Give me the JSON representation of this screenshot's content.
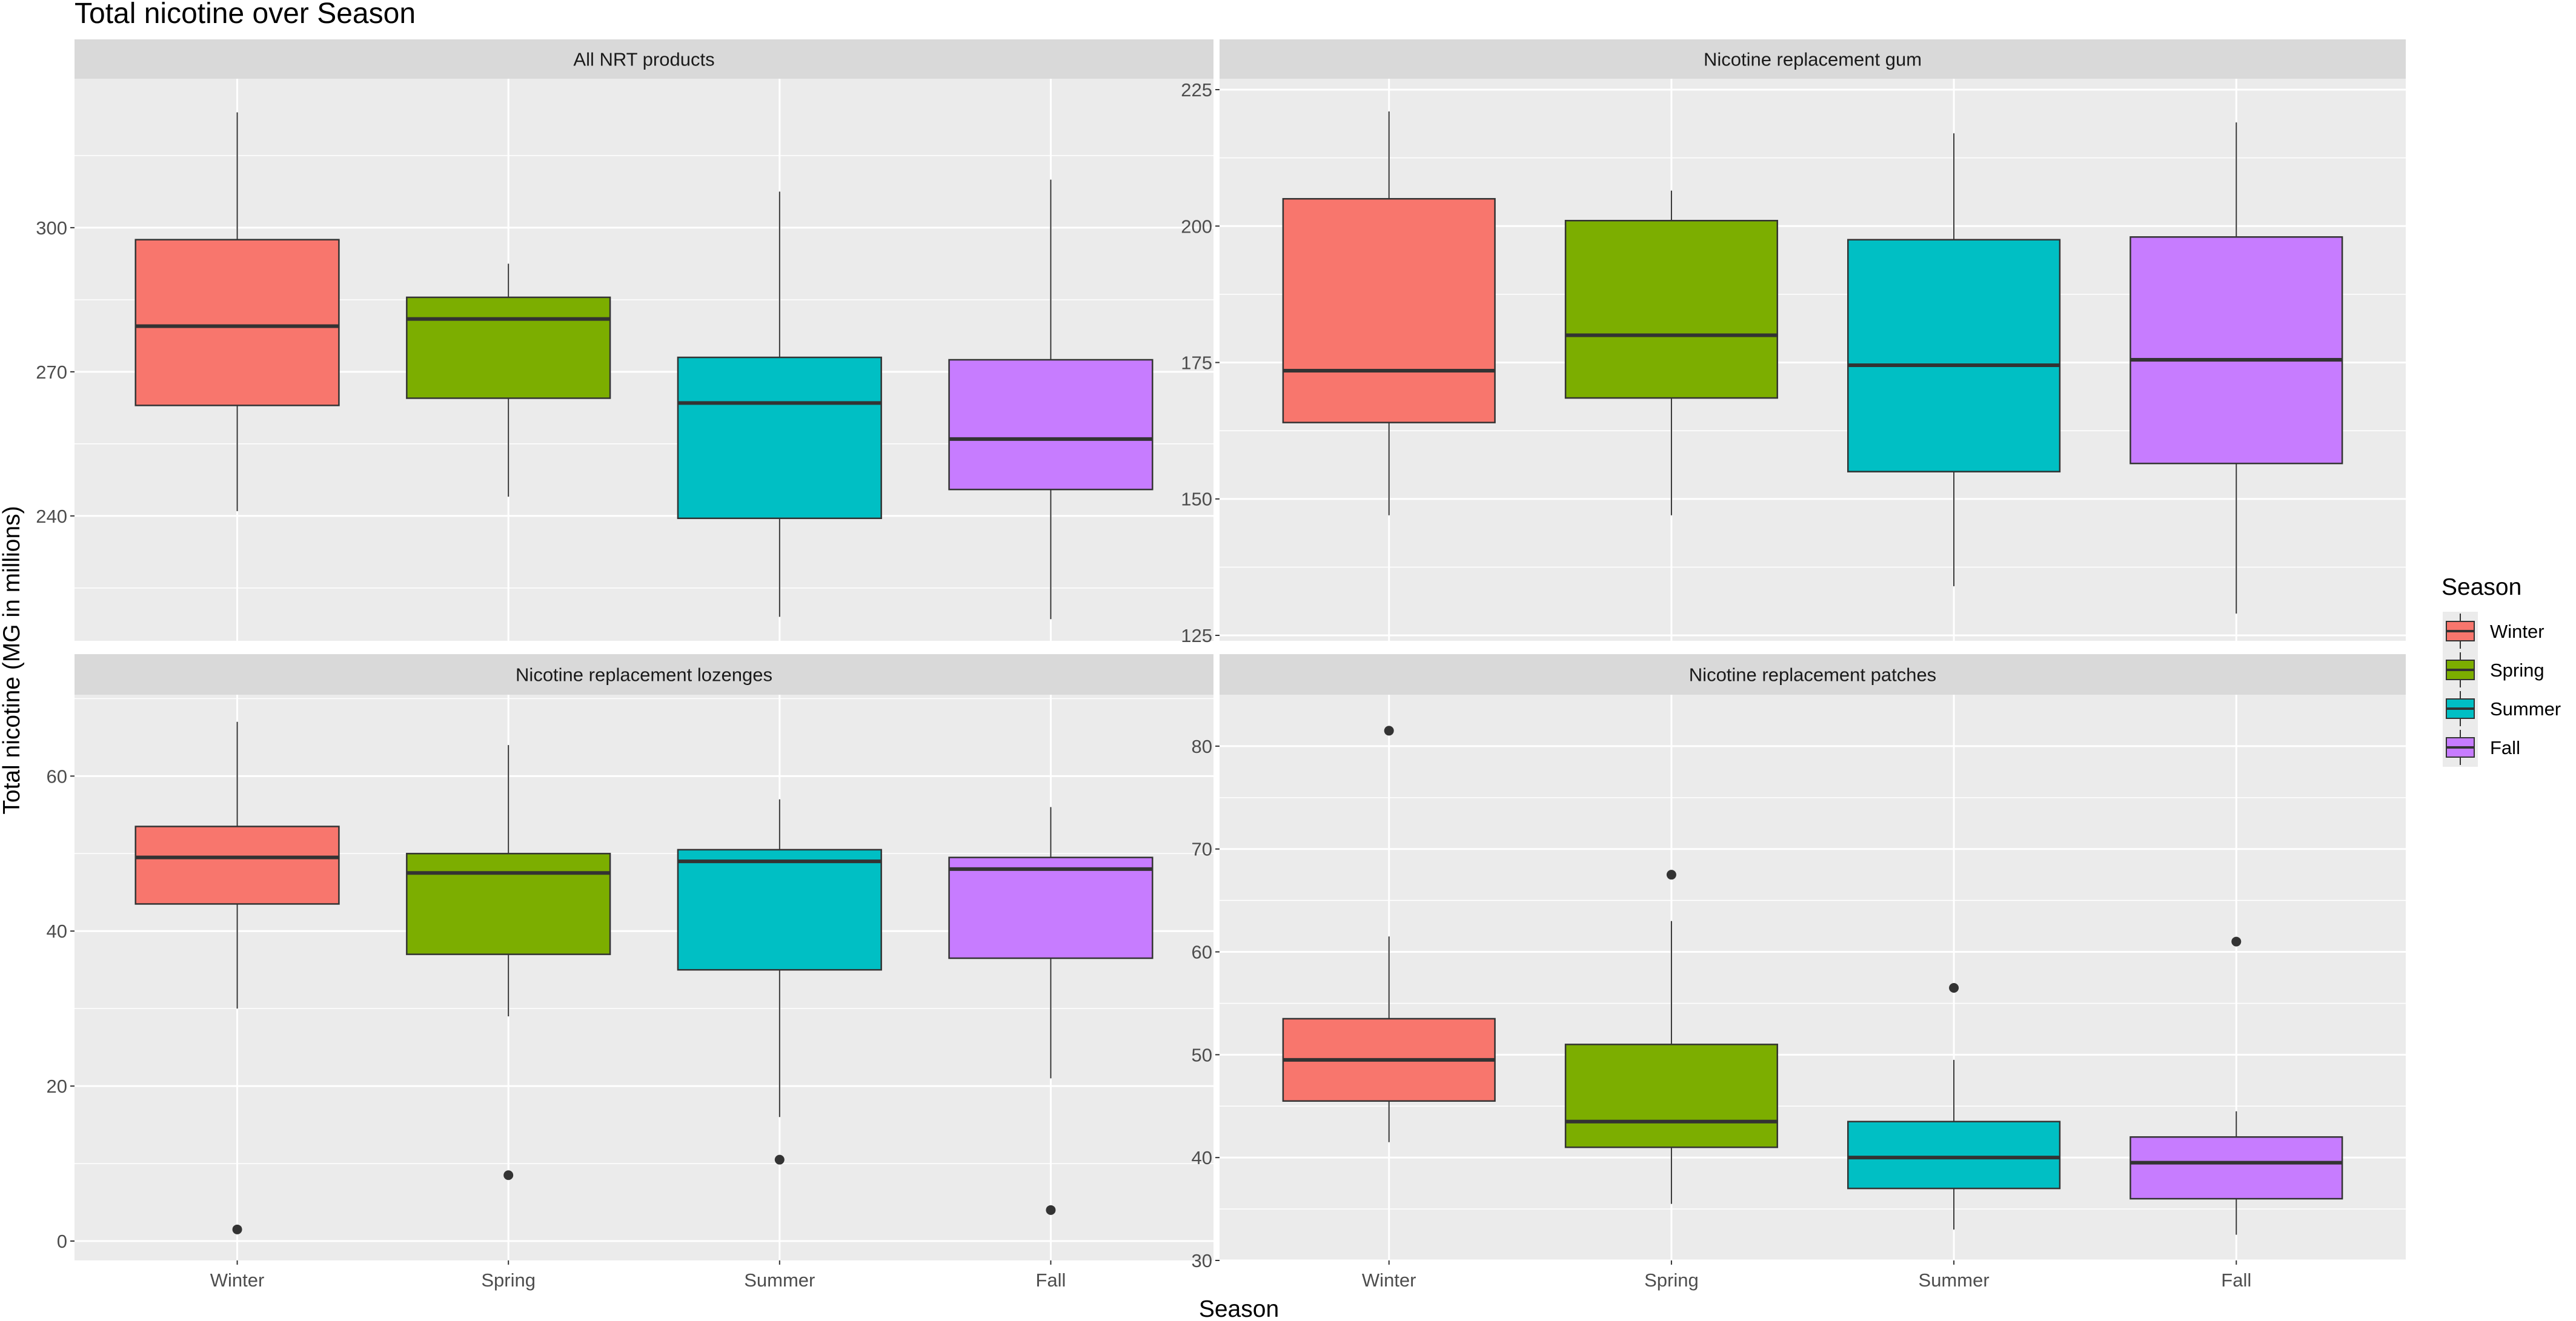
{
  "chart_data": {
    "type": "boxplot",
    "title": "Total nicotine over Season",
    "xlabel": "Season",
    "ylabel": "Total nicotine (MG in millions)",
    "categories": [
      "Winter",
      "Spring",
      "Summer",
      "Fall"
    ],
    "colors": [
      "#F8766D",
      "#7CAE00",
      "#00BFC4",
      "#C77CFF"
    ],
    "legend": {
      "title": "Season",
      "position": "right",
      "labels": [
        "Winter",
        "Spring",
        "Summer",
        "Fall"
      ]
    },
    "grid": true,
    "panels": [
      {
        "strip": "All NRT products",
        "ylim": [
          214,
          331
        ],
        "yticks": [
          240,
          270,
          300
        ],
        "boxes": [
          {
            "whisker_low": 241,
            "q1": 263,
            "median": 279.5,
            "q3": 297.5,
            "whisker_high": 324,
            "outliers": []
          },
          {
            "whisker_low": 244,
            "q1": 264.5,
            "median": 281,
            "q3": 285.5,
            "whisker_high": 292.5,
            "outliers": []
          },
          {
            "whisker_low": 219,
            "q1": 239.5,
            "median": 263.5,
            "q3": 273,
            "whisker_high": 307.5,
            "outliers": []
          },
          {
            "whisker_low": 218.5,
            "q1": 245.5,
            "median": 256,
            "q3": 272.5,
            "whisker_high": 310,
            "outliers": []
          }
        ]
      },
      {
        "strip": "Nicotine replacement gum",
        "ylim": [
          124,
          227
        ],
        "yticks": [
          125,
          150,
          175,
          200,
          225
        ],
        "boxes": [
          {
            "whisker_low": 147,
            "q1": 164,
            "median": 173.5,
            "q3": 205,
            "whisker_high": 221,
            "outliers": []
          },
          {
            "whisker_low": 147,
            "q1": 168.5,
            "median": 180,
            "q3": 201,
            "whisker_high": 206.5,
            "outliers": []
          },
          {
            "whisker_low": 134,
            "q1": 155,
            "median": 174.5,
            "q3": 197.5,
            "whisker_high": 217,
            "outliers": []
          },
          {
            "whisker_low": 129,
            "q1": 156.5,
            "median": 175.5,
            "q3": 198,
            "whisker_high": 219,
            "outliers": []
          }
        ]
      },
      {
        "strip": "Nicotine replacement lozenges",
        "ylim": [
          -2.5,
          70.5
        ],
        "yticks": [
          0,
          20,
          40,
          60
        ],
        "boxes": [
          {
            "whisker_low": 30,
            "q1": 43.5,
            "median": 49.5,
            "q3": 53.5,
            "whisker_high": 67,
            "outliers": [
              1.5
            ]
          },
          {
            "whisker_low": 29,
            "q1": 37,
            "median": 47.5,
            "q3": 50,
            "whisker_high": 64,
            "outliers": [
              8.5
            ]
          },
          {
            "whisker_low": 16,
            "q1": 35,
            "median": 49,
            "q3": 50.5,
            "whisker_high": 57,
            "outliers": [
              10.5
            ]
          },
          {
            "whisker_low": 21,
            "q1": 36.5,
            "median": 48,
            "q3": 49.5,
            "whisker_high": 56,
            "outliers": [
              4
            ]
          }
        ]
      },
      {
        "strip": "Nicotine replacement patches",
        "ylim": [
          30,
          85
        ],
        "yticks": [
          30,
          40,
          50,
          60,
          70,
          80
        ],
        "boxes": [
          {
            "whisker_low": 41.5,
            "q1": 45.5,
            "median": 49.5,
            "q3": 53.5,
            "whisker_high": 61.5,
            "outliers": [
              81.5
            ]
          },
          {
            "whisker_low": 35.5,
            "q1": 41,
            "median": 43.5,
            "q3": 51,
            "whisker_high": 63,
            "outliers": [
              67.5
            ]
          },
          {
            "whisker_low": 33,
            "q1": 37,
            "median": 40,
            "q3": 43.5,
            "whisker_high": 49.5,
            "outliers": [
              56.5
            ]
          },
          {
            "whisker_low": 32.5,
            "q1": 36,
            "median": 39.5,
            "q3": 42,
            "whisker_high": 44.5,
            "outliers": [
              61
            ]
          }
        ]
      }
    ]
  }
}
